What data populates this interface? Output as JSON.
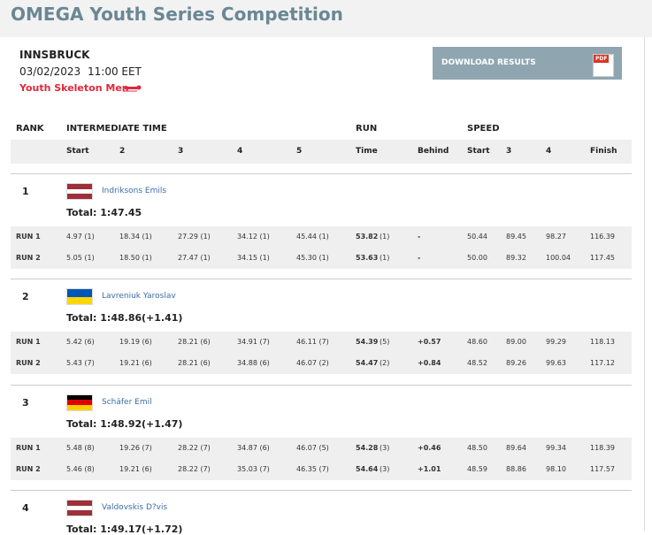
{
  "header": {
    "title": "OMEGA Youth Series Competition"
  },
  "event": {
    "location": "INNSBRUCK",
    "date": "03/02/2023",
    "time": "11:00 EET",
    "category": "Youth Skeleton Men"
  },
  "download": {
    "label": "DOWNLOAD RESULTS",
    "icon_text": "PDF"
  },
  "table": {
    "group_headers": [
      "RANK",
      "INTERMEDIATE TIME",
      "RUN",
      "SPEED"
    ],
    "columns": [
      "Start",
      "2",
      "3",
      "4",
      "5",
      "Time",
      "Behind",
      "Start",
      "3",
      "4",
      "Finish"
    ],
    "athletes": [
      {
        "rank": "1",
        "name": "Indriksons Emils",
        "flag": [
          "#9e3039",
          "#ffffff",
          "#9e3039"
        ],
        "total": "Total: 1:47.45",
        "behind": null,
        "runs": [
          {
            "label": "RUN 1",
            "intermediates": [
              "4.97 (1)",
              "18.34 (1)",
              "27.29 (1)",
              "34.12 (1)",
              "45.44 (1)"
            ],
            "time": "53.82",
            "time_rank": "(1)",
            "behind": "-",
            "speeds": [
              "50.44",
              "89.45",
              "98.27",
              "116.39"
            ]
          },
          {
            "label": "RUN 2",
            "intermediates": [
              "5.05 (1)",
              "18.50 (1)",
              "27.47 (1)",
              "34.15 (1)",
              "45.30 (1)"
            ],
            "time": "53.63",
            "time_rank": "(1)",
            "behind": "-",
            "speeds": [
              "50.00",
              "89.32",
              "100.04",
              "117.45"
            ]
          }
        ]
      },
      {
        "rank": "2",
        "name": "Lavreniuk Yaroslav",
        "flag": [
          "#0057b7",
          "#ffd700"
        ],
        "total": "Total: 1:48.86",
        "behind": "(+1.41)",
        "runs": [
          {
            "label": "RUN 1",
            "intermediates": [
              "5.42 (6)",
              "19.19 (6)",
              "28.21 (6)",
              "34.91 (7)",
              "46.11 (7)"
            ],
            "time": "54.39",
            "time_rank": "(5)",
            "behind": "+0.57",
            "speeds": [
              "48.60",
              "89.00",
              "99.29",
              "118.13"
            ]
          },
          {
            "label": "RUN 2",
            "intermediates": [
              "5.43 (7)",
              "19.21 (6)",
              "28.21 (6)",
              "34.88 (6)",
              "46.07 (2)"
            ],
            "time": "54.47",
            "time_rank": "(2)",
            "behind": "+0.84",
            "speeds": [
              "48.52",
              "89.26",
              "99.63",
              "117.12"
            ]
          }
        ]
      },
      {
        "rank": "3",
        "name": "Schäfer Emil",
        "flag": [
          "#000000",
          "#dd0000",
          "#ffce00"
        ],
        "total": "Total: 1:48.92",
        "behind": "(+1.47)",
        "runs": [
          {
            "label": "RUN 1",
            "intermediates": [
              "5.48 (8)",
              "19.26 (7)",
              "28.22 (7)",
              "34.87 (6)",
              "46.07 (5)"
            ],
            "time": "54.28",
            "time_rank": "(3)",
            "behind": "+0.46",
            "speeds": [
              "48.50",
              "89.64",
              "99.34",
              "118.39"
            ]
          },
          {
            "label": "RUN 2",
            "intermediates": [
              "5.46 (8)",
              "19.21 (6)",
              "28.22 (7)",
              "35.03 (7)",
              "46.35 (7)"
            ],
            "time": "54.64",
            "time_rank": "(3)",
            "behind": "+1.01",
            "speeds": [
              "48.59",
              "88.86",
              "98.10",
              "117.57"
            ]
          }
        ]
      },
      {
        "rank": "4",
        "name": "Valdovskis D?vis",
        "flag": [
          "#9e3039",
          "#ffffff",
          "#9e3039"
        ],
        "total": "Total: 1:49.17",
        "behind": "(+1.72)",
        "runs": []
      }
    ]
  }
}
